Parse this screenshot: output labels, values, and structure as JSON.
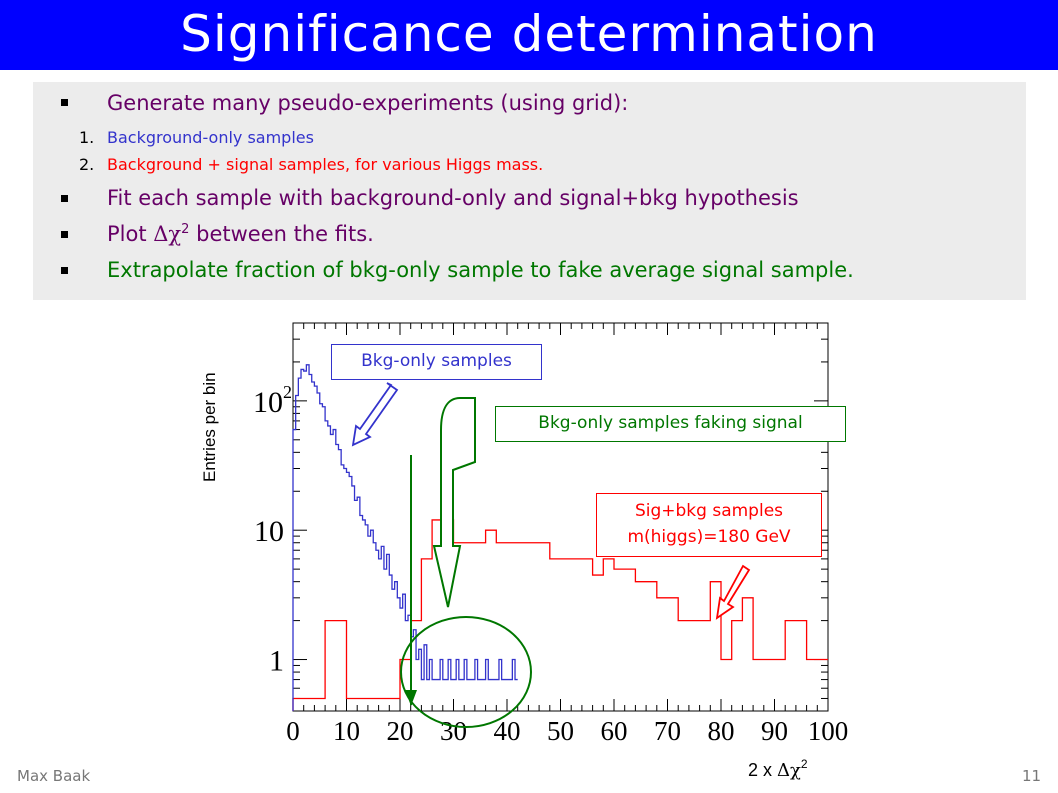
{
  "slide": {
    "title": "Significance determination",
    "footer_author": "Max Baak",
    "page_number": "11"
  },
  "bullets": [
    {
      "marker": "▪",
      "text": "Generate many pseudo-experiments (using grid):",
      "color": "#660066"
    },
    {
      "marker": "1.",
      "text": "Background-only samples",
      "color": "#3333cc"
    },
    {
      "marker": "2.",
      "text": "Background + signal samples, for various Higgs mass.",
      "color": "#ff0000"
    },
    {
      "marker": "▪",
      "text": "Fit each sample with background-only and signal+bkg hypothesis",
      "color": "#660066"
    },
    {
      "marker": "▪",
      "text_prefix": "Plot ",
      "delta_chi": "Δχ",
      "sup": "2",
      "text_suffix": " between the fits.",
      "color": "#660066"
    },
    {
      "marker": "▪",
      "text": "Extrapolate fraction of bkg-only sample to fake average signal sample.",
      "color": "#007700"
    }
  ],
  "callouts": {
    "bkg_only": "Bkg-only samples",
    "faking": "Bkg-only samples faking signal",
    "sig_line1": "Sig+bkg samples",
    "sig_line2": "m(higgs)=180 GeV"
  },
  "chart_data": {
    "type": "histogram",
    "ylabel": "Entries per bin",
    "xlabel_prefix": "2 x ",
    "xlabel_symbol": "Δχ",
    "xlabel_sup": "2",
    "xlim": [
      0,
      100
    ],
    "ylim_log": [
      0.4,
      400
    ],
    "y_scale": "log",
    "x_ticks": [
      "0",
      "10",
      "20",
      "30",
      "40",
      "50",
      "60",
      "70",
      "80",
      "90",
      "100"
    ],
    "y_ticks": [
      {
        "value": 1,
        "label": "1"
      },
      {
        "value": 10,
        "label": "10"
      },
      {
        "value": 100,
        "label": "10",
        "sup": "2"
      }
    ],
    "series": [
      {
        "name": "Bkg-only samples",
        "color": "#3333cc",
        "bin_width": 0.5,
        "x_start": 0,
        "values": [
          60,
          110,
          150,
          175,
          170,
          190,
          160,
          140,
          130,
          115,
          95,
          90,
          70,
          64,
          55,
          60,
          46,
          42,
          32,
          30,
          28,
          26,
          22,
          17,
          18,
          13,
          12,
          11,
          9,
          10,
          8,
          7,
          6,
          7.5,
          5,
          6.5,
          4.5,
          3.5,
          4,
          3,
          2.5,
          3.2,
          2,
          2.2,
          1.5,
          1.7,
          1,
          1.2,
          0.7,
          1.3,
          0.7,
          1,
          0.7,
          0.7,
          0.7,
          1,
          0.7,
          0.7,
          1,
          0.7,
          0.7,
          1,
          0.7,
          0.7,
          1,
          0.7,
          0.7,
          0.7,
          1,
          0.7,
          0.7,
          0.7,
          1,
          0.7,
          0.7,
          0.7,
          0.7,
          1,
          0.7,
          0.7,
          0.7,
          0.7,
          1,
          0.7
        ]
      },
      {
        "name": "Sig+bkg samples m(higgs)=180 GeV",
        "color": "#ff0000",
        "bin_width": 2,
        "x_start": 0,
        "values": [
          0.5,
          0.5,
          0.5,
          2,
          2,
          0.5,
          0.5,
          0.5,
          0.5,
          0.5,
          1,
          2,
          6,
          12,
          12,
          8,
          8,
          8,
          10,
          8,
          8,
          8,
          8,
          8,
          6,
          6,
          6,
          6,
          4.5,
          6,
          5,
          5,
          4,
          4,
          3,
          3,
          2,
          2,
          2,
          4,
          1,
          2,
          3,
          1,
          1,
          1,
          2,
          2,
          1,
          1
        ]
      }
    ],
    "annotations": [
      "Bkg-only samples",
      "Bkg-only samples faking signal",
      "Sig+bkg samples",
      "m(higgs)=180 GeV"
    ]
  }
}
